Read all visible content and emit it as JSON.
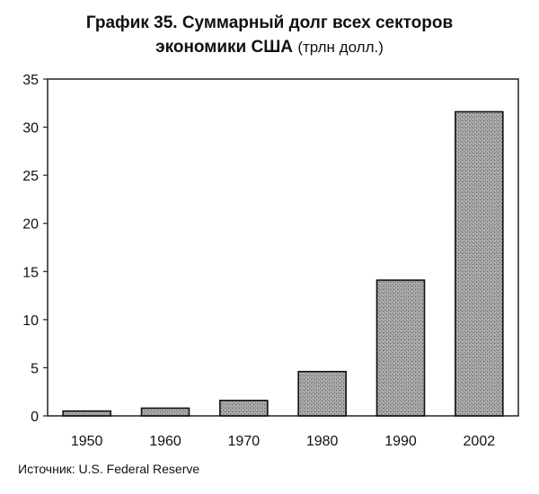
{
  "chart_data": {
    "type": "bar",
    "title_main": "График 35. Суммарный долг всех секторов",
    "title_line2": "экономики США",
    "title_unit": "(трлн долл.)",
    "categories": [
      "1950",
      "1960",
      "1970",
      "1980",
      "1990",
      "2002"
    ],
    "values": [
      0.5,
      0.8,
      1.6,
      4.6,
      14.1,
      31.6
    ],
    "ylim": [
      0,
      35
    ],
    "yticks": [
      "0",
      "5",
      "10",
      "15",
      "20",
      "25",
      "30",
      "35"
    ],
    "grid": false,
    "legend": "none",
    "bar_color": "#9a9a9a"
  },
  "source": "Источник: U.S. Federal Reserve"
}
